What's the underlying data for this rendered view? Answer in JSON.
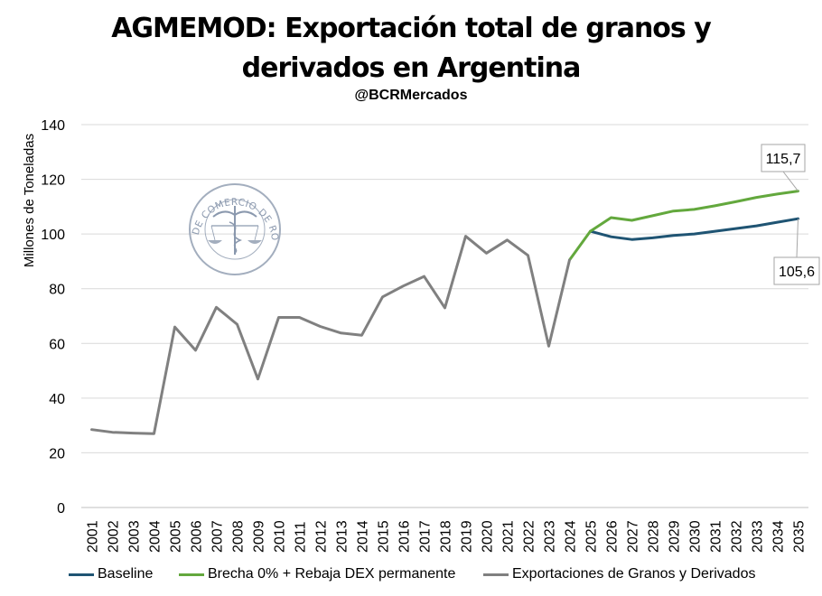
{
  "chart_data": {
    "type": "line",
    "title": "AGMEMOD: Exportación total de granos y derivados en Argentina",
    "title_lines": [
      "AGMEMOD: Exportación total de granos y",
      "derivados en Argentina"
    ],
    "subtitle": "@BCRMercados",
    "ylabel": "Millones de Toneladas",
    "xlabel": "",
    "ylim": [
      0,
      140
    ],
    "yticks": [
      0,
      20,
      40,
      60,
      80,
      100,
      120,
      140
    ],
    "grid": true,
    "legend_position": "bottom",
    "watermark_text": "BOLSA DE COMERCIO DE ROSARIO",
    "x": [
      "2001",
      "2002",
      "2003",
      "2004",
      "2005",
      "2006",
      "2007",
      "2008",
      "2009",
      "2010",
      "2011",
      "2012",
      "2013",
      "2014",
      "2015",
      "2016",
      "2017",
      "2018",
      "2019",
      "2020",
      "2021",
      "2022",
      "2023",
      "2024",
      "2025",
      "2026",
      "2027",
      "2028",
      "2029",
      "2030",
      "2031",
      "2032",
      "2033",
      "2034",
      "2035"
    ],
    "series": [
      {
        "name": "Baseline",
        "color": "#1f5473",
        "values": [
          null,
          null,
          null,
          null,
          null,
          null,
          null,
          null,
          null,
          null,
          null,
          null,
          null,
          null,
          null,
          null,
          null,
          null,
          null,
          null,
          null,
          null,
          null,
          null,
          101,
          99,
          98,
          98.6,
          99.5,
          100,
          101,
          102,
          103,
          104.3,
          105.6
        ]
      },
      {
        "name": "Brecha 0% + Rebaja DEX permanente",
        "color": "#63a83d",
        "values": [
          null,
          null,
          null,
          null,
          null,
          null,
          null,
          null,
          null,
          null,
          null,
          null,
          null,
          null,
          null,
          null,
          null,
          null,
          null,
          null,
          null,
          null,
          null,
          90.5,
          101,
          106,
          105,
          106.7,
          108.4,
          109,
          110.3,
          111.8,
          113.4,
          114.6,
          115.7
        ]
      },
      {
        "name": "Exportaciones de Granos y Derivados",
        "color": "#808080",
        "values": [
          28.5,
          27.5,
          27.2,
          27,
          66,
          57.5,
          73.2,
          67,
          47,
          69.5,
          69.5,
          66.2,
          63.8,
          63,
          77,
          81,
          84.5,
          73,
          99.2,
          93,
          97.8,
          92.2,
          59,
          90.5,
          null,
          null,
          null,
          null,
          null,
          null,
          null,
          null,
          null,
          null,
          null
        ]
      }
    ],
    "annotations": [
      {
        "text": "115,7",
        "x": "2035",
        "series": "Brecha 0% + Rebaja DEX permanente"
      },
      {
        "text": "105,6",
        "x": "2035",
        "series": "Baseline"
      }
    ]
  }
}
